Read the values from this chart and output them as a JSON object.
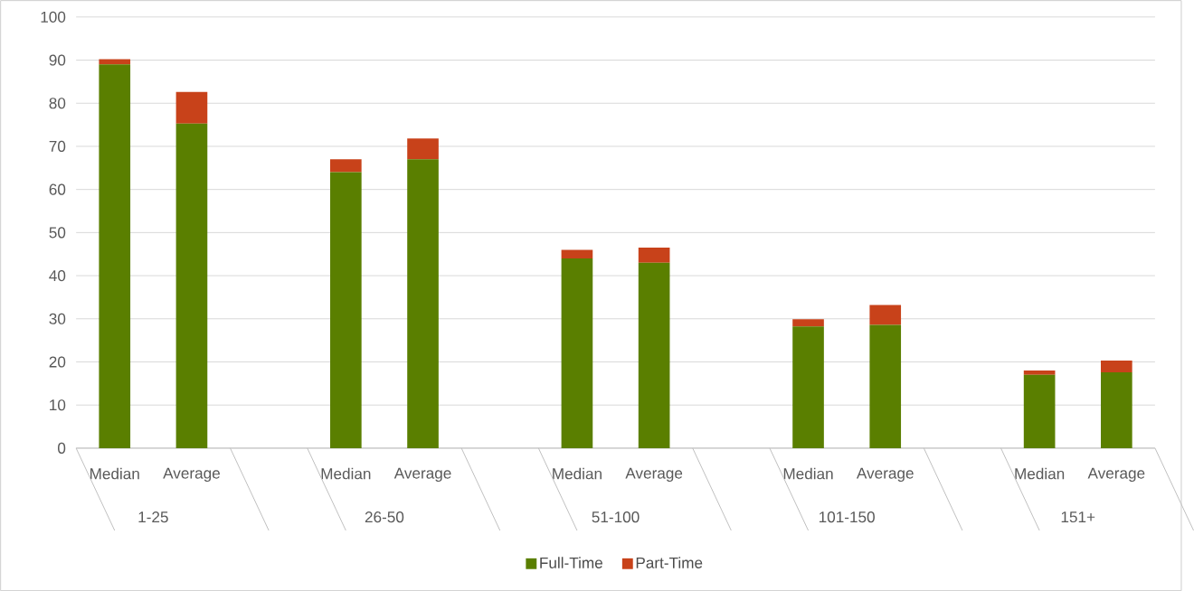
{
  "chart_data": {
    "type": "bar",
    "stacked": true,
    "categories": [
      "Median",
      "Average",
      null,
      "Median",
      "Average",
      null,
      "Median",
      "Average",
      null,
      "Median",
      "Average",
      null,
      "Median",
      "Average"
    ],
    "series": [
      {
        "name": "Full-Time",
        "color": "#5a7f00",
        "values": [
          89,
          75.3,
          null,
          64,
          67,
          null,
          44,
          43,
          null,
          28.2,
          28.6,
          null,
          17,
          17.6
        ]
      },
      {
        "name": "Part-Time",
        "color": "#c8421a",
        "values": [
          1.2,
          7.3,
          null,
          3,
          4.8,
          null,
          2,
          3.5,
          null,
          1.7,
          4.6,
          null,
          1,
          2.7
        ]
      }
    ],
    "annotations": [
      "1-25",
      "26-50",
      "51-100",
      "101-150",
      "151+"
    ],
    "ylim": [
      0,
      100
    ],
    "yticks": [
      0,
      10,
      20,
      30,
      40,
      50,
      60,
      70,
      80,
      90,
      100
    ],
    "grid": "y",
    "legend": "bottom"
  }
}
